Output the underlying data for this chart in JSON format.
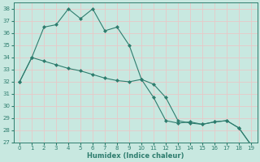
{
  "xlabel": "Humidex (Indice chaleur)",
  "x": [
    0,
    1,
    2,
    3,
    4,
    5,
    6,
    7,
    8,
    9,
    10,
    11,
    12,
    13,
    14,
    15,
    16,
    17,
    18,
    19
  ],
  "line1": [
    32,
    34,
    36.5,
    36.7,
    38,
    37.2,
    38,
    36.2,
    36.5,
    35,
    32.2,
    30.7,
    28.8,
    28.6,
    28.7,
    28.5,
    28.7,
    28.8,
    28.2,
    26.8
  ],
  "line2": [
    32,
    34,
    33.7,
    33.4,
    33.1,
    32.9,
    32.6,
    32.3,
    32.1,
    32.0,
    32.2,
    31.8,
    30.7,
    28.8,
    28.6,
    28.5,
    28.7,
    28.8,
    28.2,
    26.8
  ],
  "line_color": "#2e7d6e",
  "bg_color": "#c8e8e0",
  "grid_color": "#e8c8c8",
  "ylim": [
    27,
    38.5
  ],
  "yticks": [
    27,
    28,
    29,
    30,
    31,
    32,
    33,
    34,
    35,
    36,
    37,
    38
  ],
  "xticks": [
    0,
    1,
    2,
    3,
    4,
    5,
    6,
    7,
    8,
    9,
    10,
    11,
    12,
    13,
    14,
    15,
    16,
    17,
    18,
    19
  ],
  "marker": "D",
  "markersize": 2.0,
  "linewidth": 0.8,
  "tick_labelsize": 5.0,
  "xlabel_fontsize": 6.0
}
